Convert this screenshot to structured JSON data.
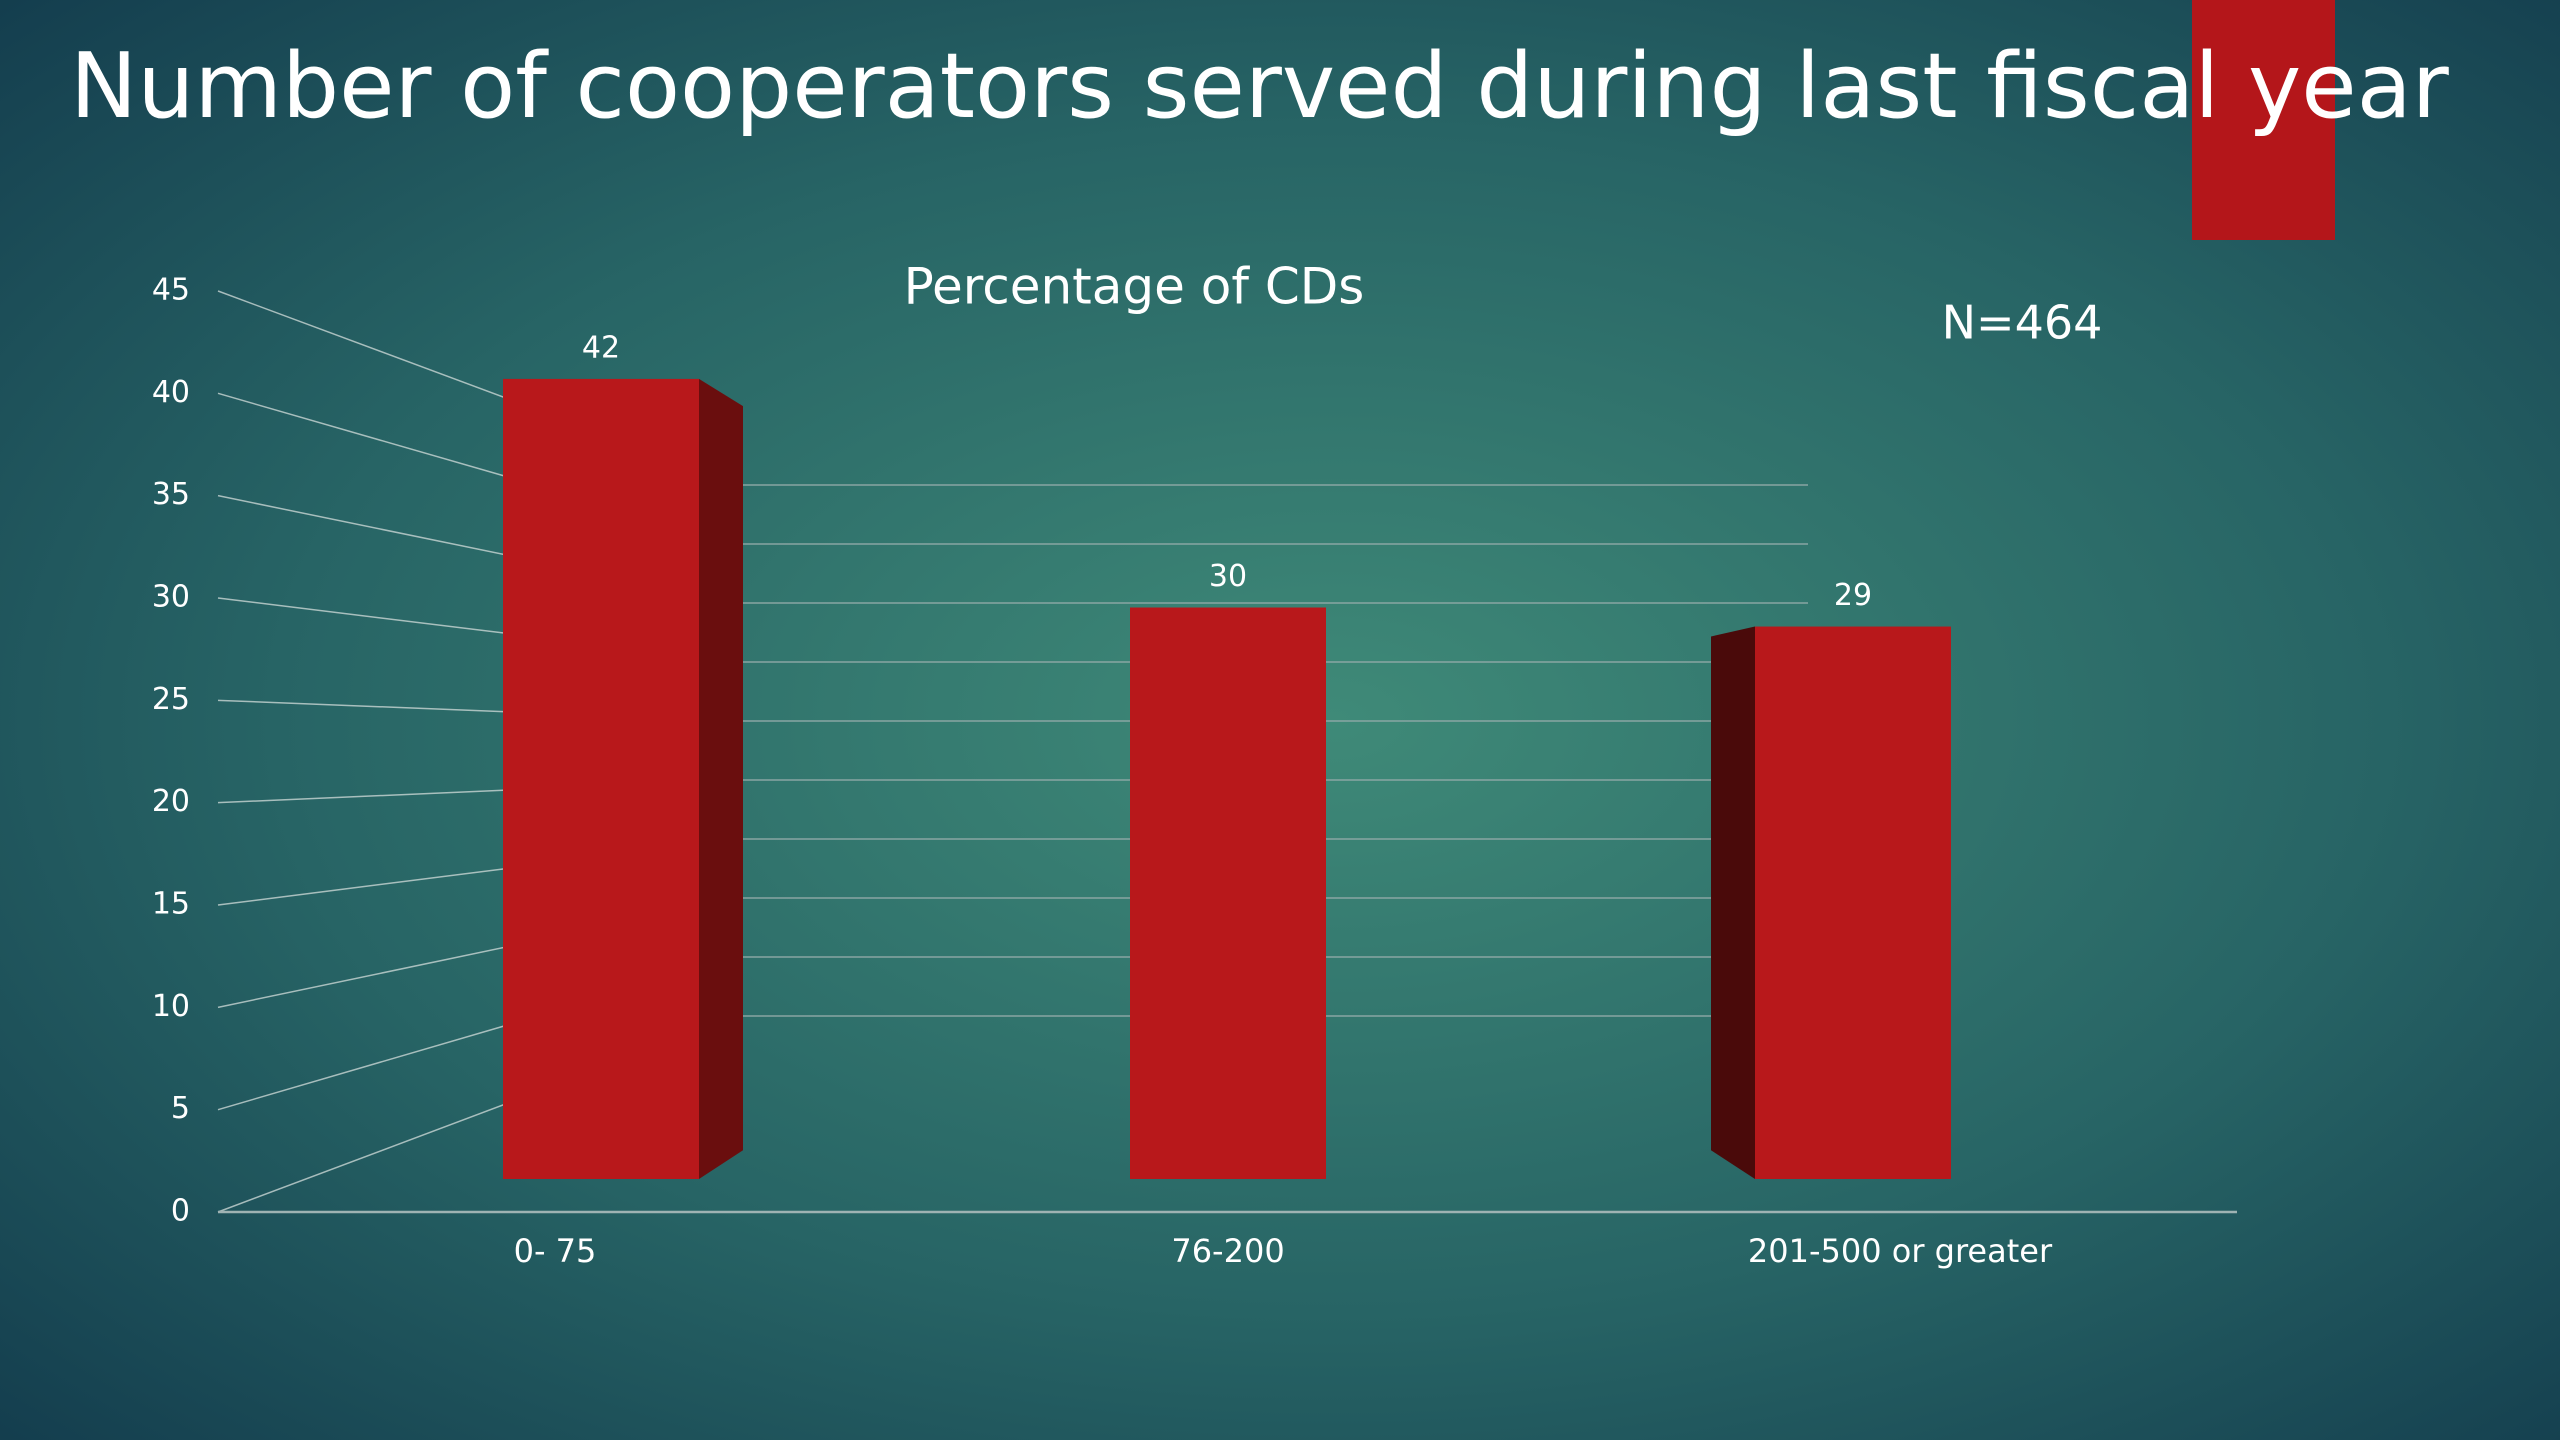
{
  "chart_data": {
    "type": "bar3d",
    "title": "Number of cooperators served during last fiscal year",
    "subtitle": "Percentage of CDs",
    "annotation": "N=464",
    "categories": [
      "0- 75",
      "76-200",
      "201-500 or greater"
    ],
    "values": [
      42,
      30,
      29
    ],
    "color": "#b8181b",
    "ylim": [
      0,
      45
    ],
    "yticks": [
      0,
      5,
      10,
      15,
      20,
      25,
      30,
      35,
      40,
      45
    ],
    "grid": true
  }
}
